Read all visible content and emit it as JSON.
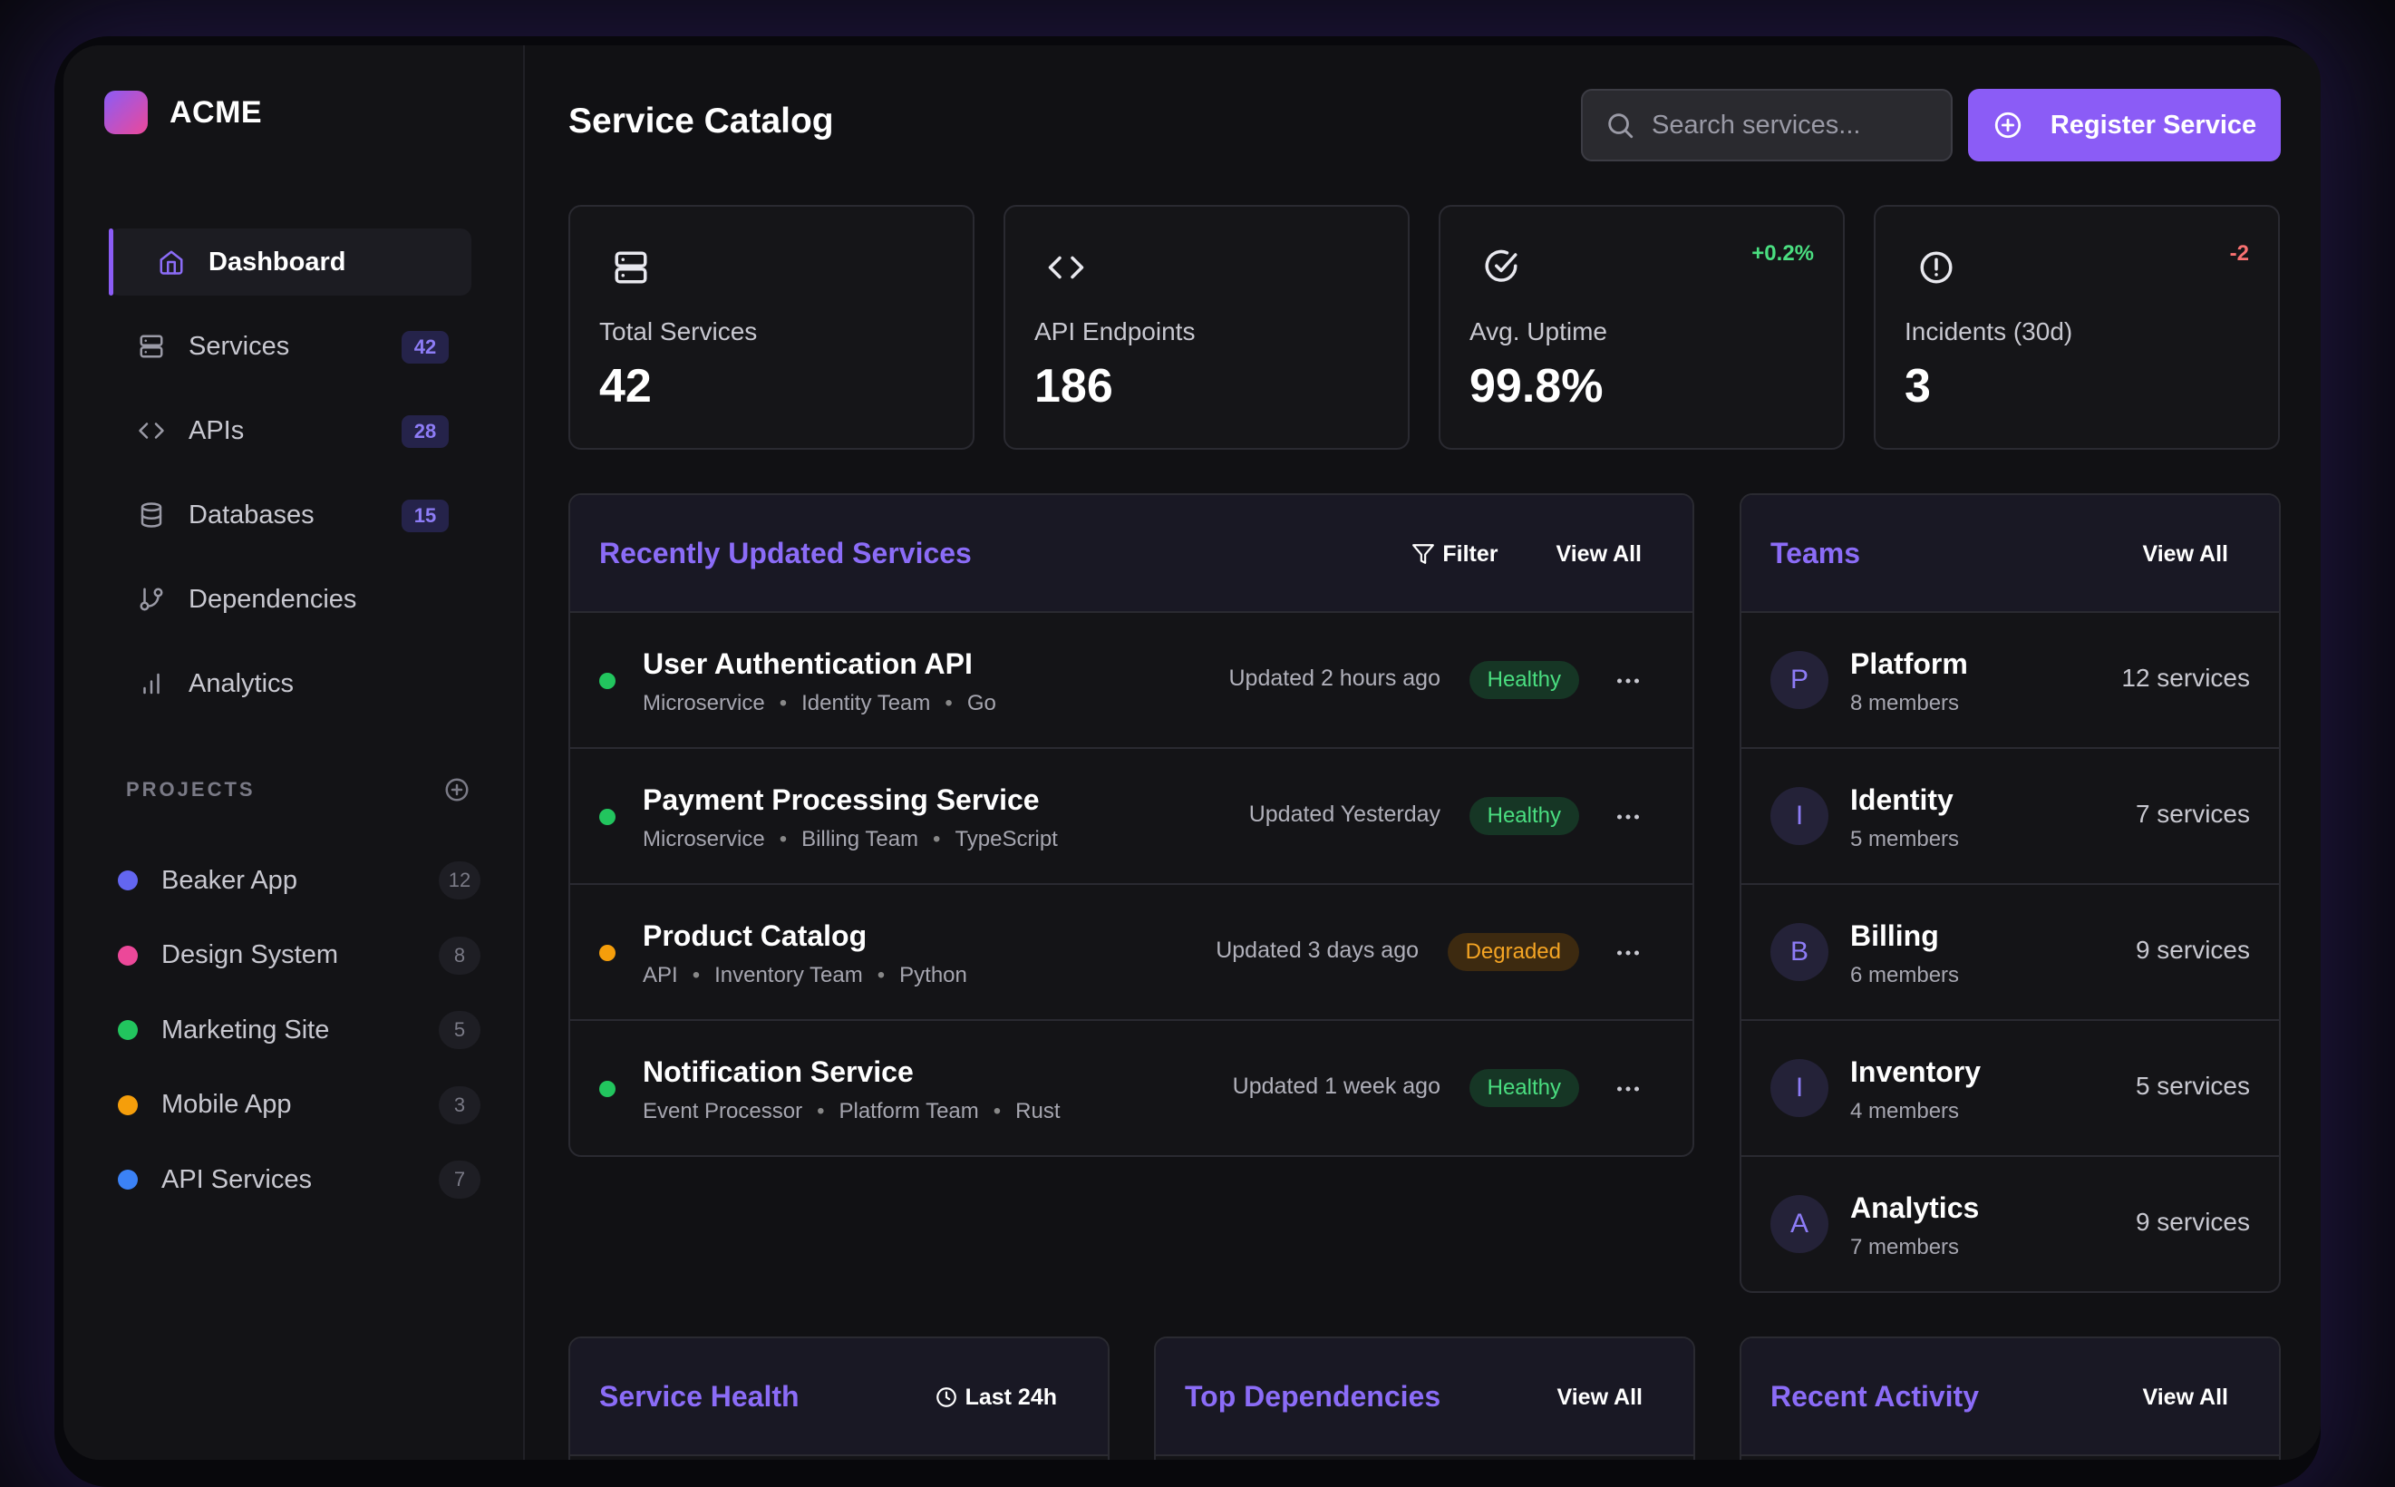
{
  "sidebar": {
    "logo_text": "ACME",
    "nav": [
      {
        "label": "Dashboard",
        "icon": "home-icon",
        "badge": ""
      },
      {
        "label": "Services",
        "icon": "server-icon",
        "badge": "42"
      },
      {
        "label": "APIs",
        "icon": "code-icon",
        "badge": "28"
      },
      {
        "label": "Databases",
        "icon": "database-icon",
        "badge": "15"
      },
      {
        "label": "Dependencies",
        "icon": "git-branch-icon",
        "badge": ""
      },
      {
        "label": "Analytics",
        "icon": "bar-chart-icon",
        "badge": ""
      }
    ],
    "projects_heading": "PROJECTS",
    "projects": [
      {
        "label": "Beaker App",
        "count": "12",
        "color": "#6366f1"
      },
      {
        "label": "Design System",
        "count": "8",
        "color": "#ec4899"
      },
      {
        "label": "Marketing Site",
        "count": "5",
        "color": "#22c55e"
      },
      {
        "label": "Mobile App",
        "count": "3",
        "color": "#f59e0b"
      },
      {
        "label": "API Services",
        "count": "7",
        "color": "#3b82f6"
      }
    ]
  },
  "header": {
    "title": "Service Catalog",
    "search_placeholder": "Search services...",
    "register_label": "Register Service"
  },
  "stats": [
    {
      "label": "Total Services",
      "value": "42",
      "trend": "",
      "icon": "server-icon"
    },
    {
      "label": "API Endpoints",
      "value": "186",
      "trend": "",
      "icon": "code-icon"
    },
    {
      "label": "Avg. Uptime",
      "value": "99.8%",
      "trend": "+0.2%",
      "trend_color": "#4ade80",
      "icon": "check-circle-icon"
    },
    {
      "label": "Incidents (30d)",
      "value": "3",
      "trend": "-2",
      "trend_color": "#f87171",
      "icon": "alert-circle-icon"
    }
  ],
  "recent": {
    "title": "Recently Updated Services",
    "filter_label": "Filter",
    "view_all_label": "View All",
    "rows": [
      {
        "name": "User Authentication API",
        "type": "Microservice",
        "team": "Identity Team",
        "lang": "Go",
        "updated": "Updated 2 hours ago",
        "status": "Healthy",
        "status_color": "#22c55e"
      },
      {
        "name": "Payment Processing Service",
        "type": "Microservice",
        "team": "Billing Team",
        "lang": "TypeScript",
        "updated": "Updated Yesterday",
        "status": "Healthy",
        "status_color": "#22c55e"
      },
      {
        "name": "Product Catalog",
        "type": "API",
        "team": "Inventory Team",
        "lang": "Python",
        "updated": "Updated 3 days ago",
        "status": "Degraded",
        "status_color": "#f59e0b"
      },
      {
        "name": "Notification Service",
        "type": "Event Processor",
        "team": "Platform Team",
        "lang": "Rust",
        "updated": "Updated 1 week ago",
        "status": "Healthy",
        "status_color": "#22c55e"
      }
    ]
  },
  "teams": {
    "title": "Teams",
    "view_all_label": "View All",
    "rows": [
      {
        "initial": "P",
        "name": "Platform",
        "members": "8 members",
        "services": "12 services"
      },
      {
        "initial": "I",
        "name": "Identity",
        "members": "5 members",
        "services": "7 services"
      },
      {
        "initial": "B",
        "name": "Billing",
        "members": "6 members",
        "services": "9 services"
      },
      {
        "initial": "I",
        "name": "Inventory",
        "members": "4 members",
        "services": "5 services"
      },
      {
        "initial": "A",
        "name": "Analytics",
        "members": "7 members",
        "services": "9 services"
      }
    ]
  },
  "bottom": {
    "health": {
      "title": "Service Health",
      "range_label": "Last 24h"
    },
    "deps": {
      "title": "Top Dependencies",
      "view_all_label": "View All"
    },
    "activity": {
      "title": "Recent Activity",
      "view_all_label": "View All"
    }
  }
}
